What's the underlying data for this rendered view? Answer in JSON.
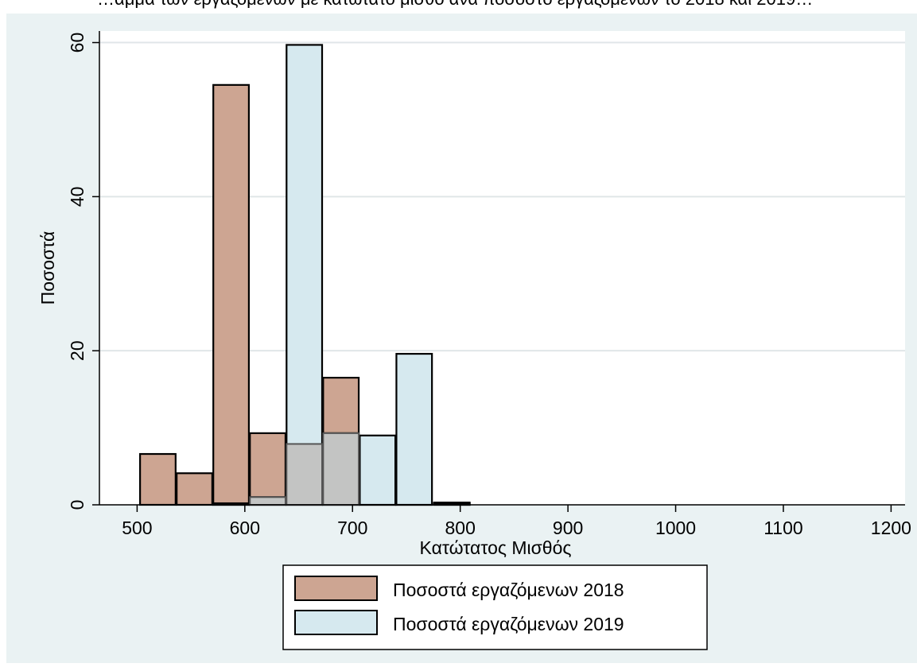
{
  "page": {
    "top_cut_text": "…αμμα των εργαζόμενων με κατώτατο μισθό ανά ποσοστό εργαζόμενων το 2018 και 2019…"
  },
  "colors": {
    "background": "#eaf2f3",
    "plot_background": "#ffffff",
    "gridline": "#e0e6e8",
    "series_2018_fill": "#cda592",
    "series_2019_fill": "#d6e9ef",
    "overlap_fill": "#c3c4c3",
    "bar_outline": "#000000"
  },
  "chart_data": {
    "type": "bar",
    "title": "",
    "xlabel": "Κατώτατος Μισθός",
    "ylabel": "Ποσοστά",
    "xlim": [
      465,
      1213
    ],
    "ylim": [
      0,
      61.5
    ],
    "x_ticks": [
      500,
      600,
      700,
      800,
      900,
      1000,
      1100,
      1200
    ],
    "y_ticks": [
      0,
      20,
      40,
      60
    ],
    "grid": true,
    "legend_position": "bottom",
    "bin_width": 34.5,
    "series": [
      {
        "name": "Ποσοστά εργαζόμενων 2018",
        "bins": [
          {
            "x0": 502,
            "value": 6.6
          },
          {
            "x0": 536,
            "value": 4.1
          },
          {
            "x0": 570,
            "value": 54.5
          },
          {
            "x0": 604,
            "value": 9.3
          },
          {
            "x0": 638,
            "value": 7.9
          },
          {
            "x0": 672,
            "value": 16.5
          },
          {
            "x0": 706,
            "value": 0.3
          },
          {
            "x0": 740,
            "value": 0.2
          },
          {
            "x0": 775,
            "value": 0.3
          }
        ]
      },
      {
        "name": "Ποσοστά εργαζόμενων 2019",
        "bins": [
          {
            "x0": 570,
            "value": 0.2
          },
          {
            "x0": 604,
            "value": 1.0
          },
          {
            "x0": 638,
            "value": 59.7
          },
          {
            "x0": 672,
            "value": 9.3
          },
          {
            "x0": 706,
            "value": 9.0
          },
          {
            "x0": 740,
            "value": 19.6
          },
          {
            "x0": 775,
            "value": 0.2
          }
        ]
      }
    ]
  }
}
